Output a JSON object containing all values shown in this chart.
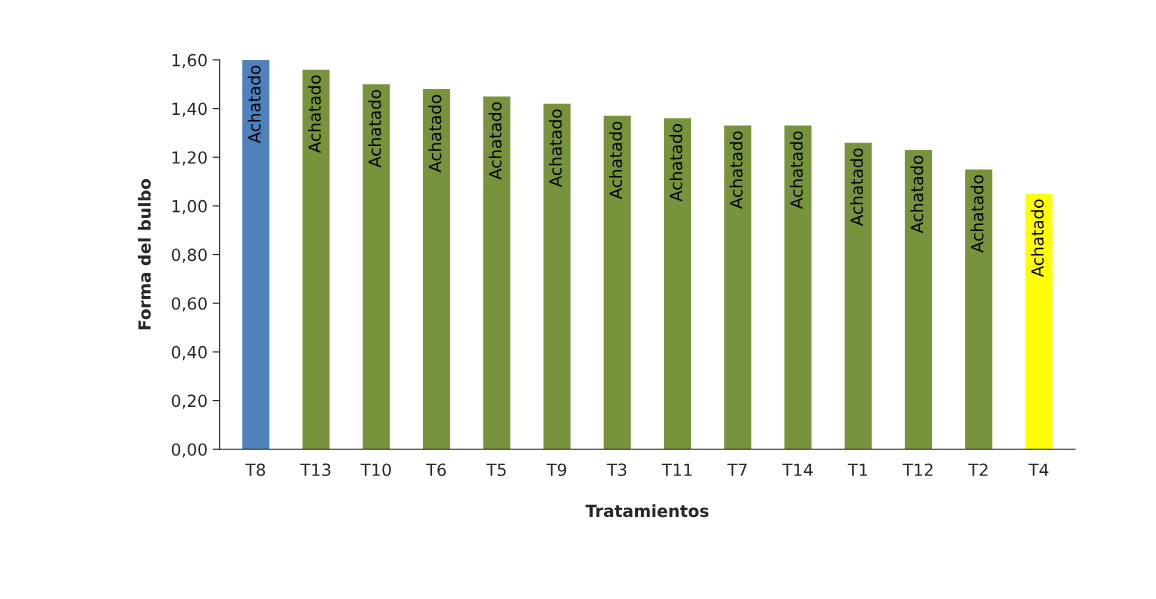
{
  "chart_data": {
    "type": "bar",
    "xlabel": "Tratamientos",
    "ylabel": "Forma del bulbo",
    "categories": [
      "T8",
      "T13",
      "T10",
      "T6",
      "T5",
      "T9",
      "T3",
      "T11",
      "T7",
      "T14",
      "T1",
      "T12",
      "T2",
      "T4"
    ],
    "values": [
      1.6,
      1.56,
      1.5,
      1.48,
      1.45,
      1.42,
      1.37,
      1.36,
      1.33,
      1.33,
      1.26,
      1.23,
      1.15,
      1.05
    ],
    "colors": [
      "#4f81bd",
      "#77933c",
      "#77933c",
      "#77933c",
      "#77933c",
      "#77933c",
      "#77933c",
      "#77933c",
      "#77933c",
      "#77933c",
      "#77933c",
      "#77933c",
      "#77933c",
      "#ffff00"
    ],
    "value_labels": [
      "Achatado",
      "Achatado",
      "Achatado",
      "Achatado",
      "Achatado",
      "Achatado",
      "Achatado",
      "Achatado",
      "Achatado",
      "Achatado",
      "Achatado",
      "Achatado",
      "Achatado",
      "Achatado"
    ],
    "ylim": [
      0,
      1.6
    ],
    "yticks": [
      {
        "value": 0,
        "label": "0,00"
      },
      {
        "value": 0.2,
        "label": "0,20"
      },
      {
        "value": 0.4,
        "label": "0,40"
      },
      {
        "value": 0.6,
        "label": "0,60"
      },
      {
        "value": 0.8,
        "label": "0,80"
      },
      {
        "value": 1.0,
        "label": "1,00"
      },
      {
        "value": 1.2,
        "label": "1,20"
      },
      {
        "value": 1.4,
        "label": "1,40"
      },
      {
        "value": 1.6,
        "label": "1,60"
      }
    ],
    "grid": false,
    "legend": false
  }
}
